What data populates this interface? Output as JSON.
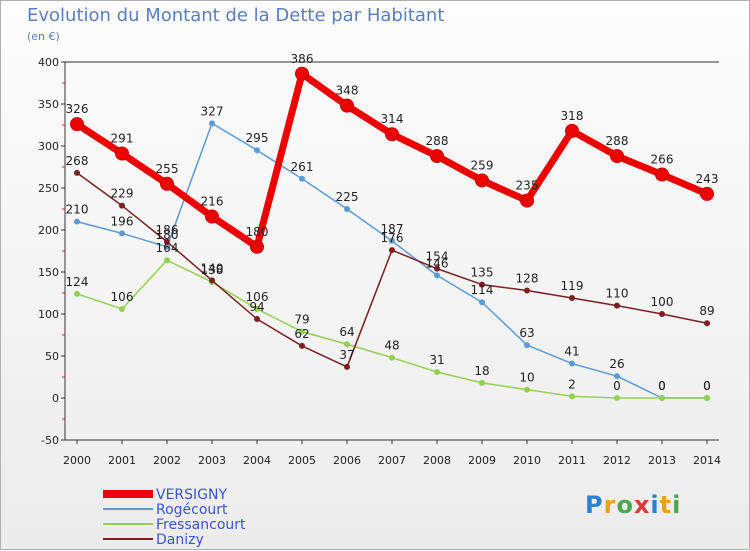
{
  "header": {
    "title": "Evolution du Montant de la Dette par Habitant",
    "unit": "(en €)"
  },
  "logo": {
    "text": "Proxiti"
  },
  "chart_data": {
    "type": "line",
    "title": "Evolution du Montant de la Dette par Habitant",
    "ylabel": "(en €)",
    "xlabel": "",
    "x": [
      "2000",
      "2001",
      "2002",
      "2003",
      "2004",
      "2005",
      "2006",
      "2007",
      "2008",
      "2009",
      "2010",
      "2011",
      "2012",
      "2013",
      "2014"
    ],
    "ylim": [
      -50,
      400
    ],
    "yticks": [
      -50,
      0,
      50,
      100,
      150,
      200,
      250,
      300,
      350,
      400
    ],
    "grid": false,
    "legend_position": "bottom-left",
    "series": [
      {
        "name": "VERSIGNY",
        "color": "#ee0000",
        "emphasis": true,
        "values": [
          326,
          291,
          255,
          216,
          180,
          386,
          348,
          314,
          288,
          259,
          235,
          318,
          288,
          266,
          243
        ]
      },
      {
        "name": "Rogécourt",
        "color": "#5b9bd5",
        "emphasis": false,
        "values": [
          210,
          196,
          180,
          327,
          295,
          261,
          225,
          187,
          146,
          114,
          63,
          41,
          26,
          0,
          0
        ]
      },
      {
        "name": "Fressancourt",
        "color": "#92d050",
        "emphasis": false,
        "values": [
          124,
          106,
          164,
          138,
          106,
          79,
          64,
          48,
          31,
          18,
          10,
          2,
          0,
          0,
          0
        ]
      },
      {
        "name": "Danizy",
        "color": "#7b2020",
        "emphasis": false,
        "values": [
          268,
          229,
          186,
          140,
          94,
          62,
          37,
          176,
          154,
          135,
          128,
          119,
          110,
          100,
          89
        ]
      }
    ]
  }
}
